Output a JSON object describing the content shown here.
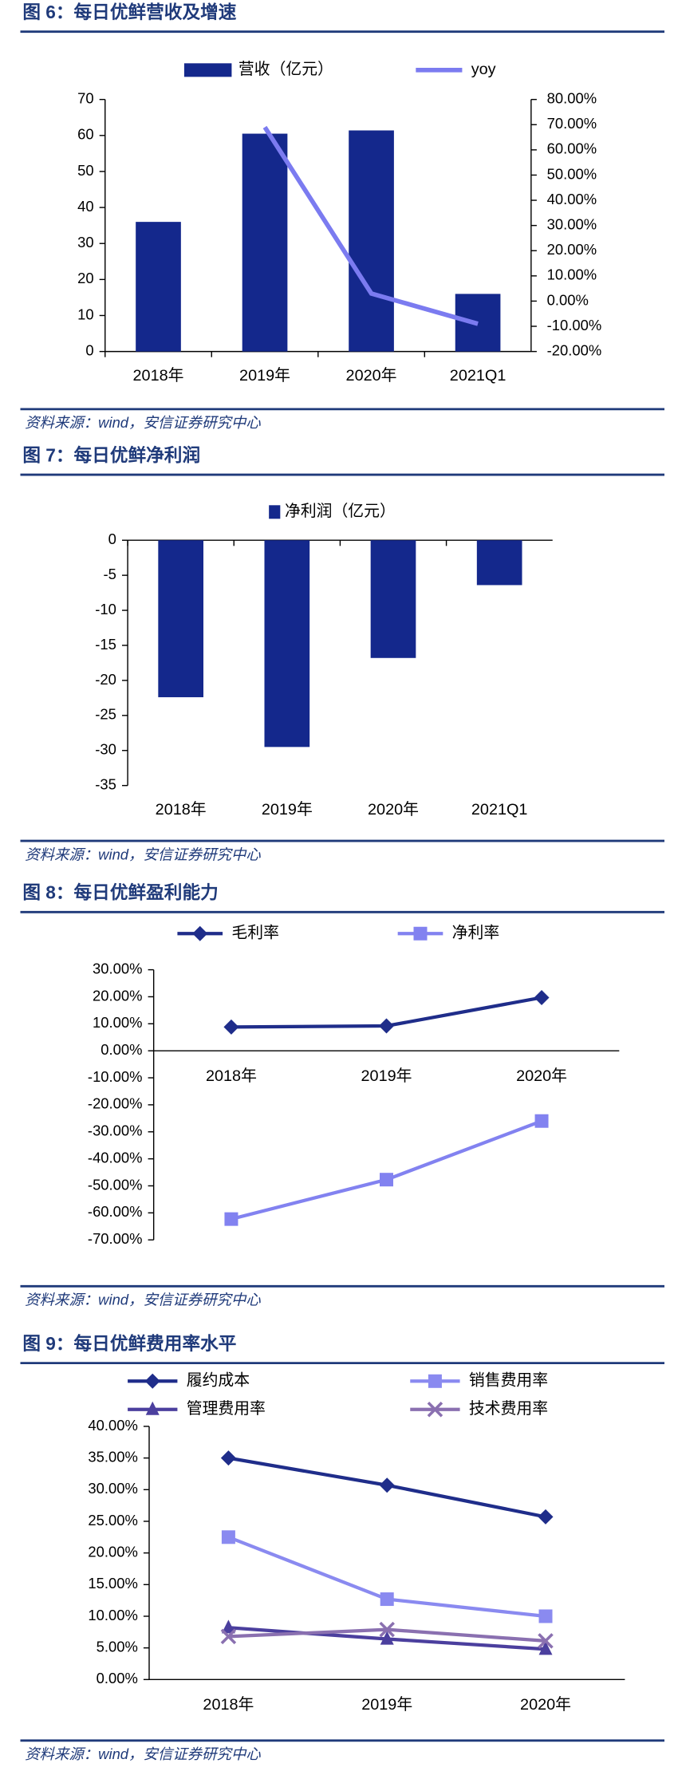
{
  "chart_data": [
    {
      "type": "bar",
      "title": "图 6：每日优鲜营收及增速",
      "source": "资料来源：wind，安信证券研究中心",
      "categories": [
        "2018年",
        "2019年",
        "2020年",
        "2021Q1"
      ],
      "series": [
        {
          "name": "营收（亿元）",
          "color": "#14288c",
          "values": [
            36,
            60.5,
            61.4,
            16
          ]
        },
        {
          "name": "yoy",
          "color": "#7b7bf0",
          "axis": "y2",
          "type": "line",
          "values": [
            null,
            69,
            3,
            -9
          ]
        }
      ],
      "ylim": [
        0,
        70
      ],
      "yticks": [
        0,
        10,
        20,
        30,
        40,
        50,
        60,
        70
      ],
      "y2lim": [
        -20,
        80
      ],
      "y2ticks": [
        {
          "value": 80,
          "label": "80.00%"
        },
        {
          "value": 70,
          "label": "70.00%"
        },
        {
          "value": 60,
          "label": "60.00%"
        },
        {
          "value": 50,
          "label": "50.00%"
        },
        {
          "value": 40,
          "label": "40.00%"
        },
        {
          "value": 30,
          "label": "30.00%"
        },
        {
          "value": 20,
          "label": "20.00%"
        },
        {
          "value": 10,
          "label": "10.00%"
        },
        {
          "value": 0,
          "label": "0.00%"
        },
        {
          "value": -10,
          "label": "-10.00%"
        },
        {
          "value": -20,
          "label": "-20.00%"
        }
      ]
    },
    {
      "type": "bar",
      "title": "图 7：每日优鲜净利润",
      "source": "资料来源：wind，安信证券研究中心",
      "categories": [
        "2018年",
        "2019年",
        "2020年",
        "2021Q1"
      ],
      "series": [
        {
          "name": "净利润（亿元）",
          "color": "#14288c",
          "values": [
            -22.4,
            -29.5,
            -16.8,
            -6.4
          ]
        }
      ],
      "ylim": [
        -35,
        0
      ],
      "yticks": [
        0,
        -5,
        -10,
        -15,
        -20,
        -25,
        -30,
        -35
      ]
    },
    {
      "type": "line",
      "title": "图 8：每日优鲜盈利能力",
      "source": "资料来源：wind，安信证券研究中心",
      "categories": [
        "2018年",
        "2019年",
        "2020年"
      ],
      "series": [
        {
          "name": "毛利率",
          "color": "#1f2d8a",
          "marker": "diamond",
          "values": [
            8.8,
            9.2,
            19.7
          ]
        },
        {
          "name": "净利率",
          "color": "#8282f0",
          "marker": "square",
          "values": [
            -62.3,
            -47.7,
            -26
          ]
        }
      ],
      "ylim": [
        -70,
        30
      ],
      "yticks": [
        {
          "value": 30,
          "label": "30.00%"
        },
        {
          "value": 20,
          "label": "20.00%"
        },
        {
          "value": 10,
          "label": "10.00%"
        },
        {
          "value": 0,
          "label": "0.00%"
        },
        {
          "value": -10,
          "label": "-10.00%"
        },
        {
          "value": -20,
          "label": "-20.00%"
        },
        {
          "value": -30,
          "label": "-30.00%"
        },
        {
          "value": -40,
          "label": "-40.00%"
        },
        {
          "value": -50,
          "label": "-50.00%"
        },
        {
          "value": -60,
          "label": "-60.00%"
        },
        {
          "value": -70,
          "label": "-70.00%"
        }
      ]
    },
    {
      "type": "line",
      "title": "图 9：每日优鲜费用率水平",
      "source": "资料来源：wind，安信证券研究中心",
      "categories": [
        "2018年",
        "2019年",
        "2020年"
      ],
      "series": [
        {
          "name": "履约成本",
          "color": "#1f2d8a",
          "marker": "diamond",
          "values": [
            35,
            30.7,
            25.7
          ]
        },
        {
          "name": "销售费用率",
          "color": "#8a8af0",
          "marker": "square",
          "values": [
            22.5,
            12.7,
            10
          ]
        },
        {
          "name": "管理费用率",
          "color": "#4b3f9e",
          "marker": "triangle",
          "values": [
            8.2,
            6.4,
            4.8
          ]
        },
        {
          "name": "技术费用率",
          "color": "#8a70b0",
          "marker": "x",
          "values": [
            6.8,
            7.9,
            6.1
          ]
        }
      ],
      "ylim": [
        0,
        40
      ],
      "yticks": [
        {
          "value": 40,
          "label": "40.00%"
        },
        {
          "value": 35,
          "label": "35.00%"
        },
        {
          "value": 30,
          "label": "30.00%"
        },
        {
          "value": 25,
          "label": "25.00%"
        },
        {
          "value": 20,
          "label": "20.00%"
        },
        {
          "value": 15,
          "label": "15.00%"
        },
        {
          "value": 10,
          "label": "10.00%"
        },
        {
          "value": 5,
          "label": "5.00%"
        },
        {
          "value": 0,
          "label": "0.00%"
        }
      ]
    }
  ]
}
